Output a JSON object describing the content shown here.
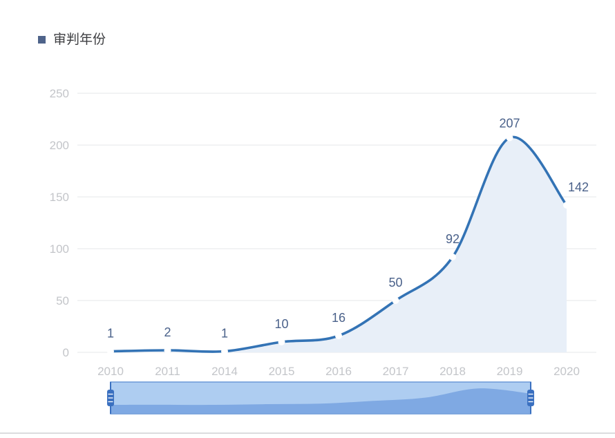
{
  "legend": {
    "label": "审判年份"
  },
  "chart_data": {
    "type": "line",
    "title": "",
    "categories": [
      "2010",
      "2011",
      "2014",
      "2015",
      "2016",
      "2017",
      "2018",
      "2019",
      "2020"
    ],
    "series": [
      {
        "name": "审判年份",
        "values": [
          1,
          2,
          1,
          10,
          16,
          50,
          92,
          207,
          142
        ]
      }
    ],
    "point_labels": [
      "1",
      "2",
      "1",
      "10",
      "16",
      "50",
      "92",
      "207",
      "142"
    ],
    "xlabel": "",
    "ylabel": "",
    "ylim": [
      0,
      250
    ],
    "yticks": [
      0,
      50,
      100,
      150,
      200,
      250
    ],
    "grid": true,
    "smooth": true,
    "area_fill": true,
    "legend_position": "top-left",
    "colors": {
      "line": "#3373b5",
      "area": "#e8eff8",
      "point_label": "#4a618a",
      "axis_label": "#c3c5c9",
      "grid_line": "#e6e7e9",
      "legend_marker": "#4e638a"
    }
  },
  "data_zoom": {
    "colors": {
      "bar": "#aecdf1",
      "profile": "#7fa9e3",
      "border": "#79a2dc",
      "handle": "#3a70c0",
      "grip_lines": "#ffffff"
    }
  },
  "divider_color": "#dbdcde"
}
